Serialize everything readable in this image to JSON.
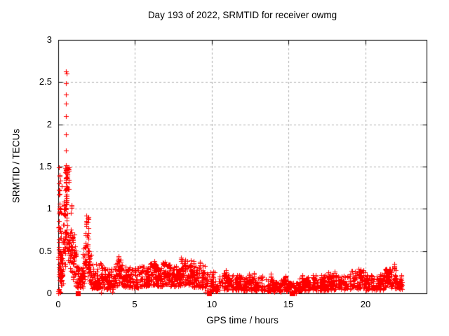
{
  "window": {
    "background": "#ffffff"
  },
  "chart_data": {
    "type": "scatter",
    "title": "Day 193 of 2022, SRMTID for receiver owmg",
    "xlabel": "GPS time / hours",
    "ylabel": "SRMTID / TECUs",
    "xlim": [
      0,
      24
    ],
    "ylim": [
      0,
      3
    ],
    "xticks": [
      0,
      5,
      10,
      15,
      20
    ],
    "xtick_labels": [
      "0",
      "5",
      "10",
      "15",
      "20"
    ],
    "yticks": [
      0,
      0.5,
      1,
      1.5,
      2,
      2.5,
      3
    ],
    "ytick_labels": [
      "0",
      "0.5",
      "1",
      "1.5",
      "2",
      "2.5",
      "3"
    ],
    "grid": {
      "visible": true,
      "style": "dashed",
      "color": "#b0b0b0"
    },
    "axis_color": "#000000",
    "legend": "none",
    "series": [
      {
        "name": "srmtid-points",
        "marker": "plus",
        "color": "#ff0000",
        "point_size": 7,
        "seed": 193,
        "band_segments_format": "[xStart,xEnd,count,yMin,yMax,lowBiasExponent]",
        "band_segments": [
          [
            0.0,
            0.3,
            52,
            0.1,
            0.48,
            1.2
          ],
          [
            0.02,
            0.22,
            20,
            0.48,
            1.5,
            1.0
          ],
          [
            0.0,
            0.14,
            6,
            0.0,
            0.1,
            1.0
          ],
          [
            0.3,
            0.45,
            22,
            0.3,
            1.1,
            1.0
          ],
          [
            0.45,
            0.7,
            42,
            0.35,
            1.52,
            0.9
          ],
          [
            0.5,
            0.68,
            16,
            1.2,
            1.5,
            1.0
          ],
          [
            0.7,
            0.9,
            20,
            0.25,
            1.05,
            1.1
          ],
          [
            0.9,
            1.15,
            26,
            0.15,
            0.7,
            1.4
          ],
          [
            1.15,
            1.6,
            40,
            0.06,
            0.32,
            1.3
          ],
          [
            1.6,
            1.78,
            18,
            0.12,
            0.55,
            1.1
          ],
          [
            1.78,
            2.0,
            32,
            0.18,
            0.92,
            1.0
          ],
          [
            2.0,
            2.2,
            20,
            0.1,
            0.5,
            1.2
          ],
          [
            2.2,
            3.0,
            72,
            0.06,
            0.36,
            1.6
          ],
          [
            3.0,
            3.6,
            55,
            0.05,
            0.3,
            1.6
          ],
          [
            3.6,
            3.85,
            20,
            0.08,
            0.32,
            1.4
          ],
          [
            3.85,
            4.1,
            22,
            0.1,
            0.42,
            1.2
          ],
          [
            4.1,
            4.35,
            18,
            0.08,
            0.32,
            1.4
          ],
          [
            4.35,
            5.3,
            82,
            0.07,
            0.32,
            1.7
          ],
          [
            5.3,
            5.9,
            55,
            0.08,
            0.33,
            1.5
          ],
          [
            5.9,
            6.4,
            46,
            0.1,
            0.36,
            1.4
          ],
          [
            6.4,
            6.8,
            36,
            0.08,
            0.3,
            1.5
          ],
          [
            6.8,
            7.3,
            46,
            0.1,
            0.38,
            1.3
          ],
          [
            7.3,
            8.0,
            62,
            0.08,
            0.31,
            1.6
          ],
          [
            8.0,
            8.7,
            62,
            0.1,
            0.4,
            1.4
          ],
          [
            8.7,
            9.6,
            72,
            0.07,
            0.33,
            1.6
          ],
          [
            9.6,
            10.4,
            56,
            0.02,
            0.26,
            1.5
          ],
          [
            10.4,
            12.0,
            115,
            0.04,
            0.22,
            1.5
          ],
          [
            12.0,
            13.5,
            105,
            0.03,
            0.2,
            1.5
          ],
          [
            13.5,
            15.0,
            98,
            0.02,
            0.17,
            1.5
          ],
          [
            15.0,
            15.6,
            38,
            0.0,
            0.13,
            1.3
          ],
          [
            15.6,
            17.5,
            135,
            0.03,
            0.2,
            1.5
          ],
          [
            17.5,
            19.0,
            105,
            0.04,
            0.22,
            1.4
          ],
          [
            19.0,
            20.0,
            72,
            0.05,
            0.27,
            1.3
          ],
          [
            20.0,
            21.2,
            84,
            0.04,
            0.22,
            1.5
          ],
          [
            21.2,
            22.0,
            62,
            0.06,
            0.3,
            1.2
          ],
          [
            22.0,
            22.4,
            26,
            0.05,
            0.18,
            1.2
          ]
        ],
        "extra_points": [
          [
            0.5,
            2.63
          ],
          [
            0.53,
            2.6
          ],
          [
            0.5,
            2.49
          ],
          [
            0.51,
            2.35
          ],
          [
            0.49,
            2.25
          ],
          [
            0.5,
            2.1
          ],
          [
            0.52,
            1.88
          ],
          [
            0.5,
            1.69
          ],
          [
            0.51,
            1.52
          ],
          [
            0.06,
            1.49
          ],
          [
            0.08,
            1.4
          ],
          [
            0.05,
            1.3
          ],
          [
            0.09,
            1.18
          ],
          [
            0.07,
            1.06
          ],
          [
            0.1,
            0.96
          ],
          [
            0.06,
            0.85
          ],
          [
            0.08,
            0.74
          ],
          [
            0.05,
            0.64
          ],
          [
            0.02,
            0.0
          ],
          [
            0.07,
            0.01
          ],
          [
            0.12,
            0.02
          ],
          [
            2.8,
            0.01
          ],
          [
            3.5,
            0.02
          ]
        ]
      },
      {
        "name": "zero-flag-points",
        "marker": "filled-square",
        "color": "#ff0000",
        "point_size": 7,
        "points": [
          [
            1.3,
            0
          ],
          [
            9.85,
            0
          ],
          [
            15.2,
            0
          ]
        ]
      }
    ]
  }
}
